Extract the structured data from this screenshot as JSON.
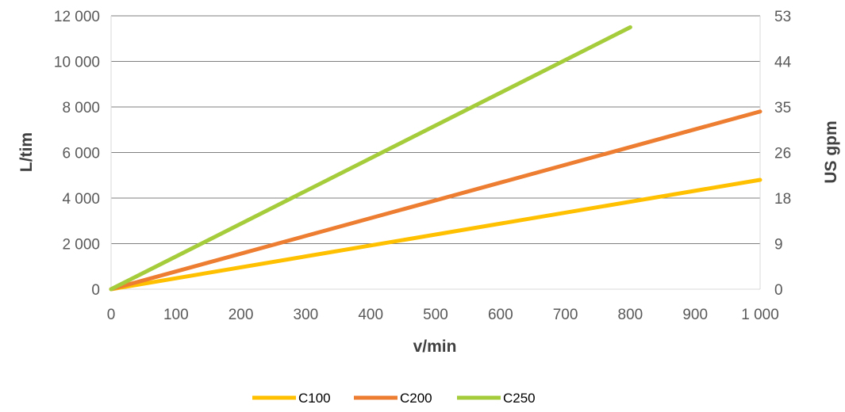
{
  "chart_data": {
    "type": "line",
    "xlabel": "v/min",
    "ylabel": "L/tim",
    "y2label": "US gpm",
    "xlim": [
      0,
      1000
    ],
    "ylim": [
      0,
      12000
    ],
    "x_ticks": [
      "0",
      "100",
      "200",
      "300",
      "400",
      "500",
      "600",
      "700",
      "800",
      "900",
      "1 000"
    ],
    "y_ticks": [
      "0",
      "2 000",
      "4 000",
      "6 000",
      "8 000",
      "10 000",
      "12 000"
    ],
    "y2_ticks": [
      "0",
      "9",
      "18",
      "26",
      "35",
      "44",
      "53"
    ],
    "grid": true,
    "legend_position": "bottom",
    "series": [
      {
        "name": "C100",
        "color": "#FFC000",
        "x": [
          0,
          1000
        ],
        "y": [
          0,
          4800
        ]
      },
      {
        "name": "C200",
        "color": "#ED7D31",
        "x": [
          0,
          1000
        ],
        "y": [
          0,
          7800
        ]
      },
      {
        "name": "C250",
        "color": "#A5CC3A",
        "x": [
          0,
          800
        ],
        "y": [
          0,
          11500
        ]
      }
    ]
  }
}
